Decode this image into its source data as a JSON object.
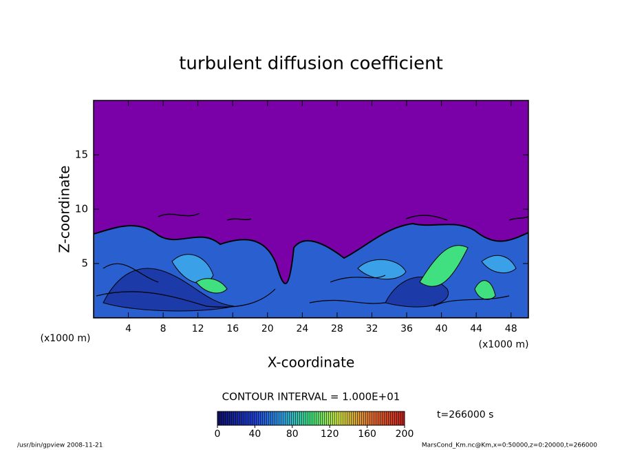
{
  "chart_data": {
    "type": "contour",
    "title": "turbulent diffusion coefficient",
    "xlabel": "X-coordinate",
    "ylabel": "Z-coordinate",
    "xunit": "(x1000 m)",
    "yunit": "(x1000 m)",
    "xlim": [
      0,
      50
    ],
    "xticks": [
      4,
      8,
      12,
      16,
      20,
      24,
      28,
      32,
      36,
      40,
      44,
      48
    ],
    "ylim": [
      0,
      20
    ],
    "yticks": [
      5,
      10,
      15
    ],
    "contour_interval": "CONTOUR INTERVAL = 1.000E+01",
    "colorbar": {
      "clim": [
        0,
        200
      ],
      "ticks": [
        0,
        40,
        80,
        120,
        160,
        200
      ]
    },
    "time_label": "t=266000 s",
    "footer_left": "/usr/bin/gpview  2008-11-21",
    "footer_right": "MarsCond_Km.nc@Km,x=0:50000,z=0:20000,t=266000"
  }
}
